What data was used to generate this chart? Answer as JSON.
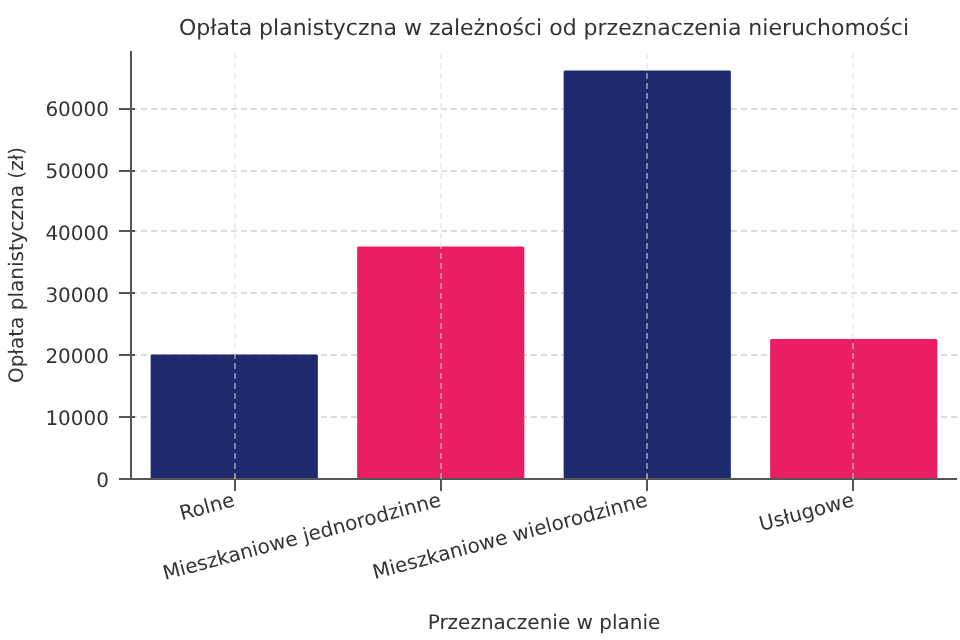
{
  "chart_data": {
    "type": "bar",
    "title": "Opłata planistyczna w zależności od przeznaczenia nieruchomości",
    "xlabel": "Przeznaczenie w planie",
    "ylabel": "Opłata planistyczna (zł)",
    "categories": [
      "Rolne",
      "Mieszkaniowe jednorodzinne",
      "Mieszkaniowe wielorodzinne",
      "Usługowe"
    ],
    "values": [
      20000,
      37500,
      66000,
      22500
    ],
    "colors": [
      "#1f2a6e",
      "#e91e63",
      "#1f2a6e",
      "#e91e63"
    ],
    "ylim": [
      0,
      69300
    ],
    "yticks": [
      0,
      10000,
      20000,
      30000,
      40000,
      50000,
      60000
    ],
    "grid": true
  }
}
